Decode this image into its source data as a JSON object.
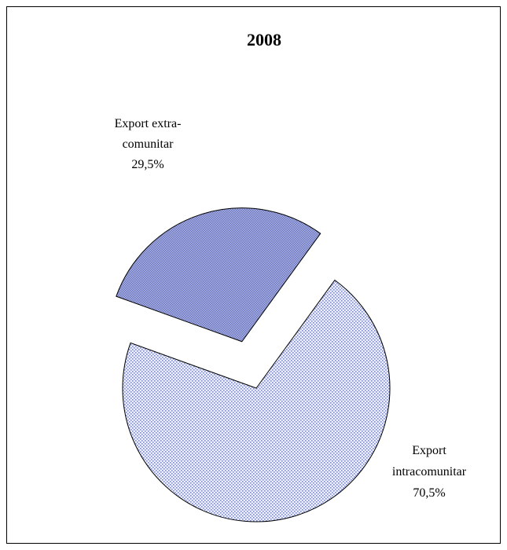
{
  "chart_data": {
    "type": "pie",
    "title": "2008",
    "slices": [
      {
        "label_lines": [
          "Export",
          "intracomunitar",
          "70,5%"
        ],
        "value": 70.5,
        "color": "#b8c0e8",
        "pattern": "dots"
      },
      {
        "label_lines": [
          "Export extra-",
          "comunitar",
          "29,5%"
        ],
        "value": 29.5,
        "color": "#8f9ad6",
        "pattern": "crosshatch",
        "exploded": true
      }
    ]
  }
}
